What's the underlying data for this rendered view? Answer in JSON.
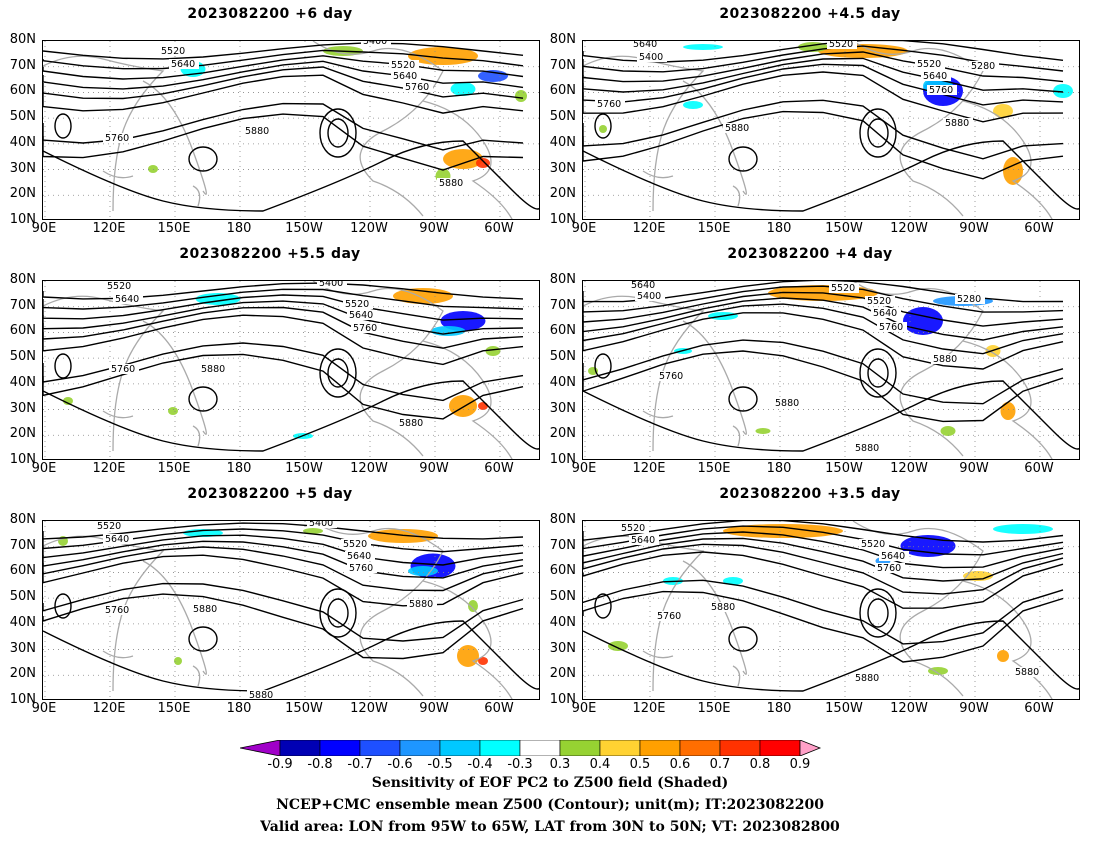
{
  "panels": [
    {
      "title": "2023082200 +6 day",
      "contour_labels": [
        "5400",
        "5520",
        "5640",
        "5520",
        "5640",
        "5760",
        "5760",
        "5880",
        "5880"
      ]
    },
    {
      "title": "2023082200 +4.5 day",
      "contour_labels": [
        "5520",
        "5640",
        "5400",
        "5520",
        "5640",
        "5760",
        "5280",
        "5760",
        "5880",
        "5880"
      ]
    },
    {
      "title": "2023082200 +5.5 day",
      "contour_labels": [
        "5400",
        "5520",
        "5640",
        "5520",
        "5640",
        "5760",
        "5760",
        "5880",
        "5880"
      ]
    },
    {
      "title": "2023082200 +4 day",
      "contour_labels": [
        "5520",
        "5640",
        "5400",
        "5520",
        "5280",
        "5640",
        "5760",
        "5880",
        "5760",
        "5880",
        "5880"
      ]
    },
    {
      "title": "2023082200 +5 day",
      "contour_labels": [
        "5400",
        "5520",
        "5640",
        "5520",
        "5640",
        "5760",
        "5880",
        "5760",
        "5880",
        "5880"
      ]
    },
    {
      "title": "2023082200 +3.5 day",
      "contour_labels": [
        "5520",
        "5640",
        "5520",
        "5640",
        "5760",
        "5880",
        "5760",
        "5880",
        "5880"
      ]
    }
  ],
  "lat_labels": [
    "80N",
    "70N",
    "60N",
    "50N",
    "40N",
    "30N",
    "20N",
    "10N"
  ],
  "lon_labels": [
    "90E",
    "120E",
    "150E",
    "180",
    "150W",
    "120W",
    "90W",
    "60W"
  ],
  "colorbar": {
    "ticks": [
      "-0.9",
      "-0.8",
      "-0.7",
      "-0.6",
      "-0.5",
      "-0.4",
      "-0.3",
      "0.3",
      "0.4",
      "0.5",
      "0.6",
      "0.7",
      "0.8",
      "0.9"
    ],
    "colors": [
      "#a000c8",
      "#0000b4",
      "#0000ff",
      "#1e50ff",
      "#1e96ff",
      "#00c8ff",
      "#00ffff",
      "#ffffff",
      "#96d232",
      "#ffd232",
      "#ffa000",
      "#ff6e00",
      "#ff3200",
      "#ff0000",
      "#ffa0c8"
    ]
  },
  "caption": {
    "line1": "Sensitivity of EOF PC2 to Z500 field (Shaded)",
    "line2": "NCEP+CMC ensemble mean Z500 (Contour); unit(m); IT:2023082200",
    "line3": "Valid area: LON from 95W to 65W, LAT from 30N to 50N; VT: 2023082800"
  }
}
